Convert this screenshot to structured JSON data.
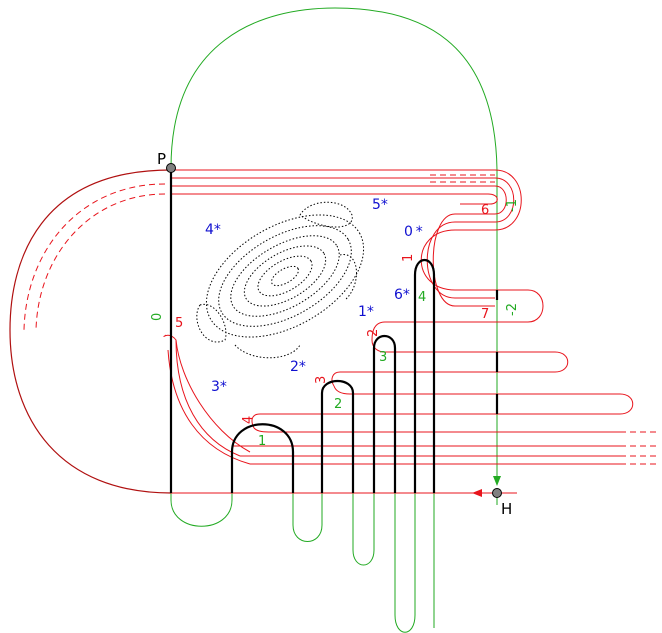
{
  "points": {
    "P": "P",
    "H": "H"
  },
  "blue_labels": [
    "0 *",
    "1*",
    "2*",
    "3*",
    "4*",
    "5*",
    "6*"
  ],
  "red_labels": [
    "1",
    "2",
    "3",
    "4",
    "5",
    "6",
    "7"
  ],
  "green_labels": [
    "0",
    "1",
    "2",
    "3",
    "4",
    "-1",
    "-2"
  ],
  "colors": {
    "red": "#e8141c",
    "dark_red": "#b01010",
    "green": "#22aa22",
    "blue": "#1010d0",
    "black": "#000000"
  }
}
